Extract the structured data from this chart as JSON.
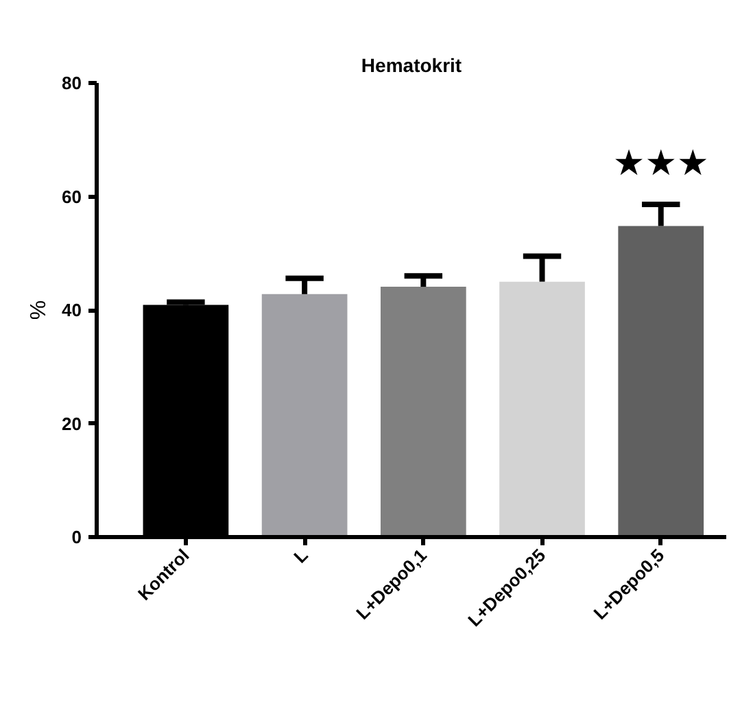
{
  "chart_data": {
    "type": "bar",
    "title": "Hematokrit",
    "ylabel": "%",
    "categories": [
      "Kontrol",
      "L",
      "L+Depo0,1",
      "L+Depo0,25",
      "L+Depo0,5"
    ],
    "values": [
      40.9,
      42.8,
      44.1,
      45.0,
      54.8
    ],
    "colors": [
      "#000000",
      "#a0a0a5",
      "#808080",
      "#d3d3d3",
      "#606060"
    ],
    "errors": [
      [
        40.9,
        41.4
      ],
      [
        42.8,
        45.6
      ],
      [
        44.1,
        46.0
      ],
      [
        45.0,
        49.5
      ],
      [
        54.8,
        58.6
      ]
    ],
    "annotations": [
      "★★★"
    ],
    "ylim": [
      0,
      80
    ],
    "yticks": [
      0,
      20,
      40,
      60,
      80
    ],
    "grid": false
  }
}
